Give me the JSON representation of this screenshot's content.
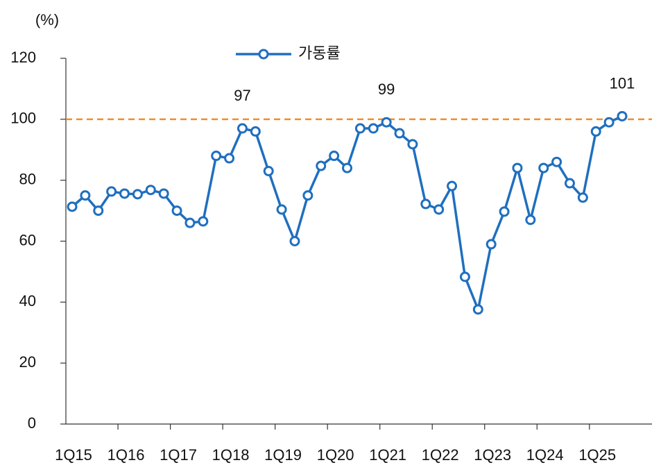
{
  "chart_data": {
    "type": "line",
    "unit_label": "(%)",
    "categories": [
      "1Q15",
      null,
      null,
      null,
      "1Q16",
      null,
      null,
      null,
      "1Q17",
      null,
      null,
      null,
      "1Q18",
      null,
      null,
      null,
      "1Q19",
      null,
      null,
      null,
      "1Q20",
      null,
      null,
      null,
      "1Q21",
      null,
      null,
      null,
      "1Q22",
      null,
      null,
      null,
      "1Q23",
      null,
      null,
      null,
      "1Q24",
      null,
      null,
      null,
      "1Q25",
      null,
      null
    ],
    "series": [
      {
        "name": "가동률",
        "color": "#1f6fbf",
        "values": [
          71.3,
          75,
          70,
          76.3,
          75.6,
          75.4,
          76.8,
          75.6,
          70,
          66,
          66.5,
          88,
          87.2,
          97,
          96,
          83,
          70.4,
          60,
          75,
          84.7,
          88,
          84,
          97,
          97,
          99,
          95.4,
          91.8,
          72.2,
          70.4,
          78.1,
          48.3,
          37.6,
          59,
          69.7,
          84,
          67,
          84,
          86,
          79,
          74.3,
          96,
          99,
          101
        ],
        "value_labels": [
          null,
          null,
          null,
          null,
          null,
          null,
          null,
          null,
          null,
          null,
          null,
          null,
          null,
          "97",
          null,
          null,
          null,
          null,
          null,
          null,
          null,
          null,
          null,
          null,
          "99",
          null,
          null,
          null,
          null,
          null,
          null,
          null,
          null,
          null,
          null,
          null,
          null,
          null,
          null,
          null,
          null,
          null,
          "101"
        ]
      }
    ],
    "reference_line": {
      "value": 100,
      "color": "#f28c28",
      "style": "dashed"
    },
    "ylim": [
      0,
      120
    ],
    "yticks": [
      0,
      20,
      40,
      60,
      80,
      100,
      120
    ],
    "grid": false,
    "legend": "top"
  }
}
